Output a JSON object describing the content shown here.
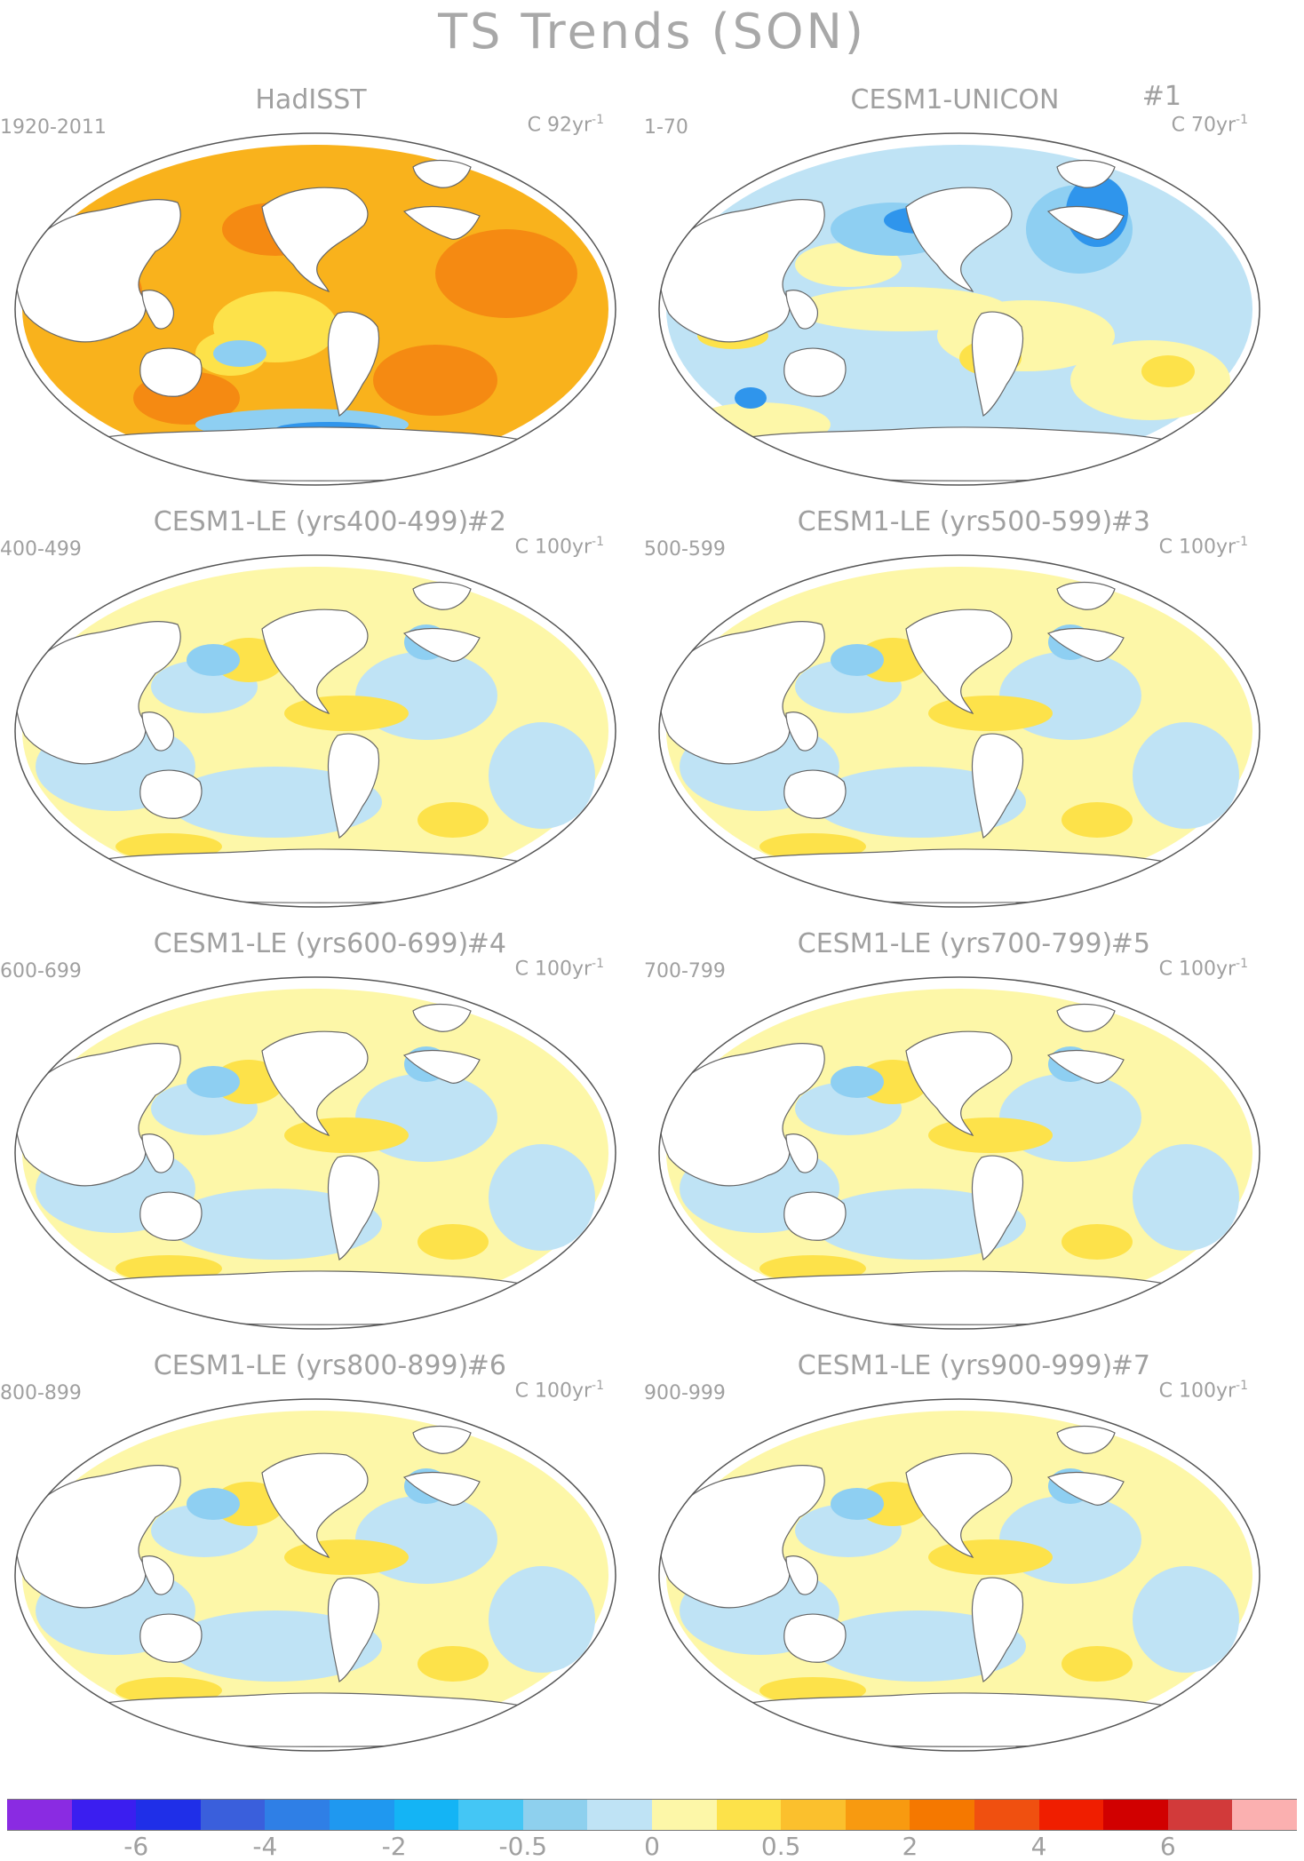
{
  "title": "TS Trends (SON)",
  "panels": [
    {
      "title": "HadISST",
      "number": "",
      "period": "1920-2011",
      "units_base": "C 92yr",
      "units_exp": "-1",
      "theme": "warm"
    },
    {
      "title": "CESM1-UNICON",
      "number": "#1",
      "period": "1-70",
      "units_base": "C 70yr",
      "units_exp": "-1",
      "theme": "cool"
    },
    {
      "title": "CESM1-LE (yrs400-499)",
      "number": "#2",
      "period": "400-499",
      "units_base": "C 100yr",
      "units_exp": "-1",
      "theme": "mixed"
    },
    {
      "title": "CESM1-LE (yrs500-599)",
      "number": "#3",
      "period": "500-599",
      "units_base": "C 100yr",
      "units_exp": "-1",
      "theme": "mixed"
    },
    {
      "title": "CESM1-LE (yrs600-699)",
      "number": "#4",
      "period": "600-699",
      "units_base": "C 100yr",
      "units_exp": "-1",
      "theme": "mixed"
    },
    {
      "title": "CESM1-LE (yrs700-799)",
      "number": "#5",
      "period": "700-799",
      "units_base": "C 100yr",
      "units_exp": "-1",
      "theme": "mixed"
    },
    {
      "title": "CESM1-LE (yrs800-899)",
      "number": "#6",
      "period": "800-899",
      "units_base": "C 100yr",
      "units_exp": "-1",
      "theme": "mixed"
    },
    {
      "title": "CESM1-LE (yrs900-999)",
      "number": "#7",
      "period": "900-999",
      "units_base": "C 100yr",
      "units_exp": "-1",
      "theme": "mixed"
    }
  ],
  "colorbar": {
    "colors": [
      "#8a2be2",
      "#3b1ef0",
      "#1f2fe8",
      "#3a5fdc",
      "#2f7fe6",
      "#1f98f0",
      "#14b4f5",
      "#44c6f5",
      "#8ed0ee",
      "#bfe3f5",
      "#fdf7a8",
      "#fde24a",
      "#fbc02d",
      "#f89a10",
      "#f57800",
      "#f05010",
      "#f01e00",
      "#d10000",
      "#d23a3a",
      "#fbb0b0"
    ],
    "labels": [
      "-6",
      "-4",
      "-2",
      "-0.5",
      "0",
      "0.5",
      "2",
      "4",
      "6"
    ],
    "label_boundaries": [
      2,
      4,
      6,
      8,
      10,
      12,
      14,
      16,
      18
    ]
  },
  "map_colors": {
    "land": "#ffffff",
    "coast": "#666666",
    "warm_base": "#f9b21c",
    "warm_deep": "#f58a12",
    "light_blue": "#bfe3f5",
    "blue": "#8ecff2",
    "deep_blue": "#2f95ec",
    "yellow": "#fdf7a8",
    "gold": "#fde24a",
    "orange": "#fbc02d"
  }
}
